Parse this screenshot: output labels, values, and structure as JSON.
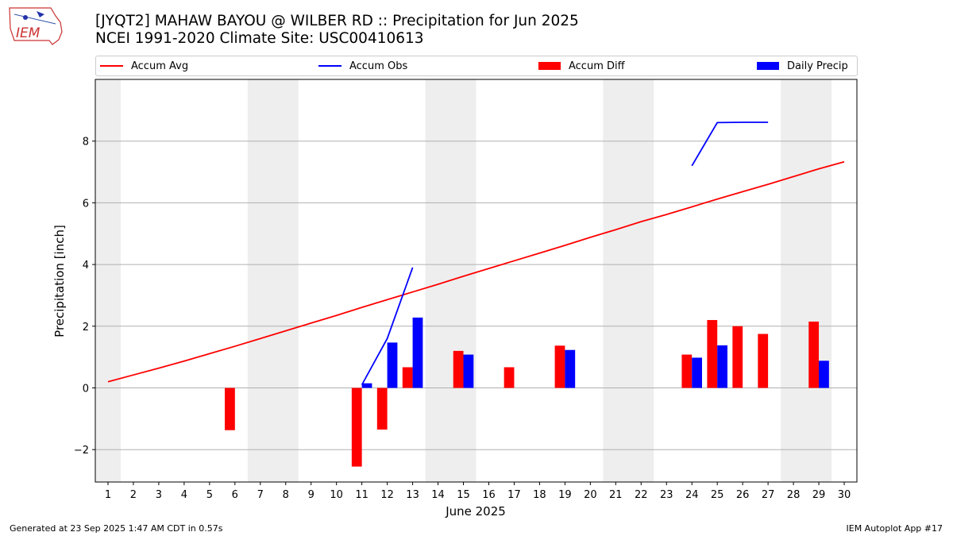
{
  "header": {
    "title": "[JYQT2] MAHAW BAYOU @ WILBER RD :: Precipitation for Jun 2025",
    "subtitle": "NCEI 1991-2020 Climate Site: USC00410613",
    "logo_text": "IEM"
  },
  "footer": {
    "generated": "Generated at 23 Sep 2025 1:47 AM CDT in 0.57s",
    "app": "IEM Autoplot App #17"
  },
  "legend": {
    "accum_avg": "Accum Avg",
    "accum_obs": "Accum Obs",
    "accum_diff": "Accum Diff",
    "daily_precip": "Daily Precip"
  },
  "colors": {
    "accum_avg": "#ff0000",
    "accum_obs": "#0000ff",
    "accum_diff": "#ff0000",
    "daily_precip": "#0000ff",
    "weekend_shade": "#eeeeee",
    "grid": "#b0b0b0"
  },
  "chart_data": {
    "type": "bar",
    "xlabel": "June 2025",
    "ylabel": "Precipitation [inch]",
    "xlim": [
      0.5,
      30.5
    ],
    "ylim": [
      -3.05,
      10.0
    ],
    "yticks": [
      -2,
      0,
      2,
      4,
      6,
      8
    ],
    "grid": "horizontal",
    "legend_position": "top",
    "x": [
      1,
      2,
      3,
      4,
      5,
      6,
      7,
      8,
      9,
      10,
      11,
      12,
      13,
      14,
      15,
      16,
      17,
      18,
      19,
      20,
      21,
      22,
      23,
      24,
      25,
      26,
      27,
      28,
      29,
      30
    ],
    "shaded_days": [
      [
        0.5,
        1.5
      ],
      [
        6.5,
        8.5
      ],
      [
        13.5,
        15.5
      ],
      [
        20.5,
        22.5
      ],
      [
        27.5,
        29.5
      ]
    ],
    "series": [
      {
        "name": "Accum Avg",
        "kind": "line",
        "values": [
          0.2,
          0.42,
          0.64,
          0.87,
          1.11,
          1.35,
          1.6,
          1.85,
          2.1,
          2.35,
          2.61,
          2.86,
          3.11,
          3.36,
          3.62,
          3.87,
          4.12,
          4.37,
          4.62,
          4.88,
          5.13,
          5.39,
          5.62,
          5.87,
          6.12,
          6.36,
          6.6,
          6.85,
          7.1,
          7.33
        ]
      },
      {
        "name": "Accum Obs",
        "kind": "line",
        "segments": [
          {
            "x": [
              11,
              12,
              13
            ],
            "y": [
              0.1,
              1.6,
              3.9
            ]
          },
          {
            "x": [
              24,
              25,
              26,
              27
            ],
            "y": [
              7.2,
              8.6,
              8.61,
              8.61
            ]
          }
        ]
      },
      {
        "name": "Accum Diff",
        "kind": "bar",
        "points": [
          {
            "x": 6,
            "y": -1.37
          },
          {
            "x": 11,
            "y": -2.55
          },
          {
            "x": 12,
            "y": -1.35
          },
          {
            "x": 13,
            "y": 0.67
          },
          {
            "x": 15,
            "y": 1.2
          },
          {
            "x": 17,
            "y": 0.67
          },
          {
            "x": 19,
            "y": 1.37
          },
          {
            "x": 24,
            "y": 1.08
          },
          {
            "x": 25,
            "y": 2.2
          },
          {
            "x": 26,
            "y": 2.0
          },
          {
            "x": 27,
            "y": 1.75
          },
          {
            "x": 29,
            "y": 2.15
          }
        ]
      },
      {
        "name": "Daily Precip",
        "kind": "bar",
        "points": [
          {
            "x": 11,
            "y": 0.15
          },
          {
            "x": 12,
            "y": 1.47
          },
          {
            "x": 13,
            "y": 2.28
          },
          {
            "x": 15,
            "y": 1.08
          },
          {
            "x": 19,
            "y": 1.23
          },
          {
            "x": 24,
            "y": 0.98
          },
          {
            "x": 25,
            "y": 1.38
          },
          {
            "x": 29,
            "y": 0.88
          }
        ]
      }
    ]
  }
}
